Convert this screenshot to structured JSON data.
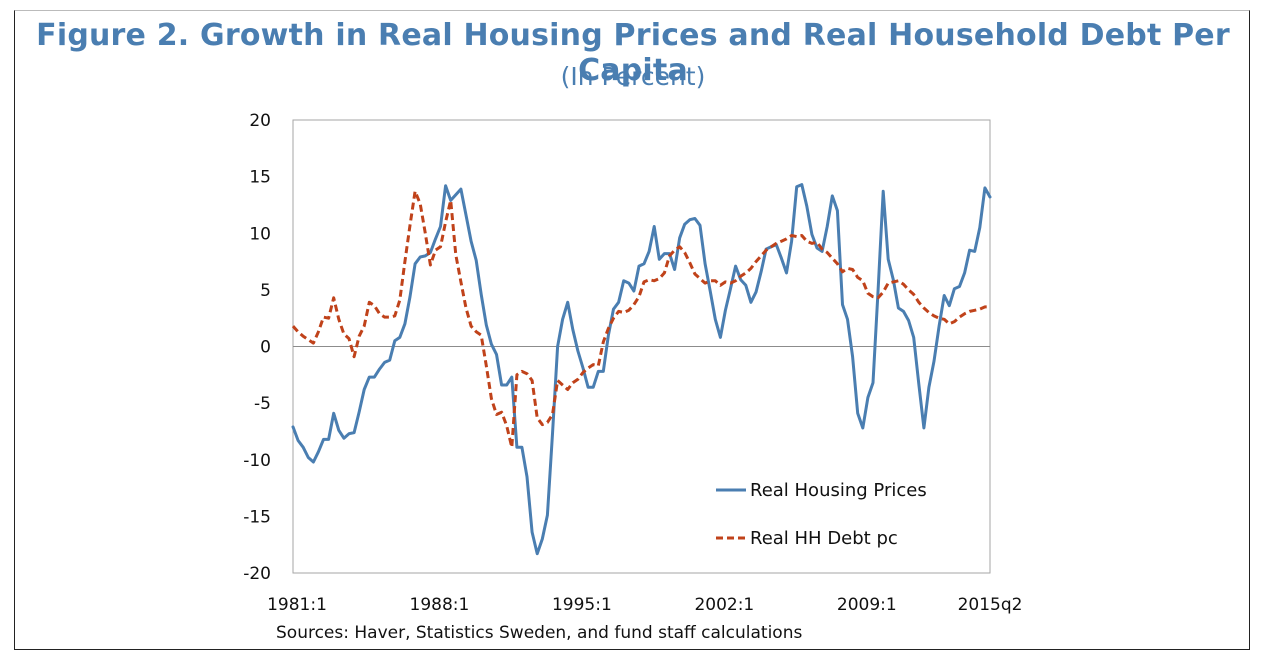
{
  "chart_data": {
    "type": "line",
    "title": "Figure 2. Growth in Real Housing Prices and Real Household Debt Per Capita",
    "subtitle": "(In Percent)",
    "ylim": [
      -20,
      20
    ],
    "yticks": [
      20,
      15,
      10,
      5,
      0,
      -5,
      -10,
      -15,
      -20
    ],
    "xlim": [
      1981.0,
      2015.25
    ],
    "xtick_labels": [
      {
        "x": 1981.0,
        "label": "1981:1"
      },
      {
        "x": 1988.0,
        "label": "1988:1"
      },
      {
        "x": 1995.0,
        "label": "1995:1"
      },
      {
        "x": 2002.0,
        "label": "2002:1"
      },
      {
        "x": 2009.0,
        "label": "2009:1"
      },
      {
        "x": 2015.25,
        "label": "2015q2"
      }
    ],
    "grid": false,
    "zero_line": true,
    "legend_position": "bottom-right",
    "series": [
      {
        "name": "Real Housing Prices",
        "color": "#4a7eb1",
        "style": "solid",
        "points": [
          [
            1981.0,
            -7.1
          ],
          [
            1981.25,
            -8.3
          ],
          [
            1981.5,
            -8.9
          ],
          [
            1981.75,
            -9.8
          ],
          [
            1982.0,
            -10.2
          ],
          [
            1982.25,
            -9.3
          ],
          [
            1982.5,
            -8.2
          ],
          [
            1982.75,
            -8.2
          ],
          [
            1983.0,
            -5.9
          ],
          [
            1983.25,
            -7.4
          ],
          [
            1983.5,
            -8.1
          ],
          [
            1983.75,
            -7.7
          ],
          [
            1984.0,
            -7.6
          ],
          [
            1984.25,
            -5.8
          ],
          [
            1984.5,
            -3.8
          ],
          [
            1984.75,
            -2.7
          ],
          [
            1985.0,
            -2.7
          ],
          [
            1985.25,
            -2.0
          ],
          [
            1985.5,
            -1.4
          ],
          [
            1985.75,
            -1.2
          ],
          [
            1986.0,
            0.5
          ],
          [
            1986.25,
            0.8
          ],
          [
            1986.5,
            2.0
          ],
          [
            1986.75,
            4.4
          ],
          [
            1987.0,
            7.3
          ],
          [
            1987.25,
            7.9
          ],
          [
            1987.5,
            8.0
          ],
          [
            1987.75,
            8.3
          ],
          [
            1988.0,
            9.5
          ],
          [
            1988.25,
            10.6
          ],
          [
            1988.5,
            14.2
          ],
          [
            1988.75,
            12.9
          ],
          [
            1989.0,
            13.4
          ],
          [
            1989.25,
            13.9
          ],
          [
            1989.5,
            11.6
          ],
          [
            1989.75,
            9.3
          ],
          [
            1990.0,
            7.6
          ],
          [
            1990.25,
            4.6
          ],
          [
            1990.5,
            1.9
          ],
          [
            1990.75,
            0.2
          ],
          [
            1991.0,
            -0.7
          ],
          [
            1991.25,
            -3.4
          ],
          [
            1991.5,
            -3.4
          ],
          [
            1991.75,
            -2.7
          ],
          [
            1992.0,
            -8.9
          ],
          [
            1992.25,
            -8.9
          ],
          [
            1992.5,
            -11.5
          ],
          [
            1992.75,
            -16.4
          ],
          [
            1993.0,
            -18.3
          ],
          [
            1993.25,
            -17.0
          ],
          [
            1993.5,
            -14.9
          ],
          [
            1993.75,
            -7.7
          ],
          [
            1994.0,
            0.0
          ],
          [
            1994.25,
            2.4
          ],
          [
            1994.5,
            3.9
          ],
          [
            1994.75,
            1.5
          ],
          [
            1995.0,
            -0.4
          ],
          [
            1995.25,
            -1.9
          ],
          [
            1995.5,
            -3.6
          ],
          [
            1995.75,
            -3.6
          ],
          [
            1996.0,
            -2.2
          ],
          [
            1996.25,
            -2.2
          ],
          [
            1996.5,
            1.0
          ],
          [
            1996.75,
            3.3
          ],
          [
            1997.0,
            3.9
          ],
          [
            1997.25,
            5.8
          ],
          [
            1997.5,
            5.6
          ],
          [
            1997.75,
            4.9
          ],
          [
            1998.0,
            7.1
          ],
          [
            1998.25,
            7.3
          ],
          [
            1998.5,
            8.4
          ],
          [
            1998.75,
            10.6
          ],
          [
            1999.0,
            7.7
          ],
          [
            1999.25,
            8.2
          ],
          [
            1999.5,
            8.2
          ],
          [
            1999.75,
            6.8
          ],
          [
            2000.0,
            9.6
          ],
          [
            2000.25,
            10.8
          ],
          [
            2000.5,
            11.2
          ],
          [
            2000.75,
            11.3
          ],
          [
            2001.0,
            10.7
          ],
          [
            2001.25,
            7.3
          ],
          [
            2001.5,
            4.9
          ],
          [
            2001.75,
            2.4
          ],
          [
            2002.0,
            0.8
          ],
          [
            2002.25,
            3.2
          ],
          [
            2002.5,
            5.1
          ],
          [
            2002.75,
            7.1
          ],
          [
            2003.0,
            5.9
          ],
          [
            2003.25,
            5.4
          ],
          [
            2003.5,
            3.9
          ],
          [
            2003.75,
            4.8
          ],
          [
            2004.0,
            6.6
          ],
          [
            2004.25,
            8.6
          ],
          [
            2004.5,
            8.8
          ],
          [
            2004.75,
            9.0
          ],
          [
            2005.0,
            7.8
          ],
          [
            2005.25,
            6.5
          ],
          [
            2005.5,
            9.3
          ],
          [
            2005.75,
            14.1
          ],
          [
            2006.0,
            14.3
          ],
          [
            2006.25,
            12.4
          ],
          [
            2006.5,
            9.9
          ],
          [
            2006.75,
            8.7
          ],
          [
            2007.0,
            8.4
          ],
          [
            2007.25,
            10.6
          ],
          [
            2007.5,
            13.3
          ],
          [
            2007.75,
            12.0
          ],
          [
            2008.0,
            3.7
          ],
          [
            2008.25,
            2.4
          ],
          [
            2008.5,
            -0.9
          ],
          [
            2008.75,
            -5.9
          ],
          [
            2009.0,
            -7.2
          ],
          [
            2009.25,
            -4.5
          ],
          [
            2009.5,
            -3.2
          ],
          [
            2009.75,
            5.0
          ],
          [
            2010.0,
            13.7
          ],
          [
            2010.25,
            7.7
          ],
          [
            2010.5,
            5.9
          ],
          [
            2010.75,
            3.4
          ],
          [
            2011.0,
            3.1
          ],
          [
            2011.25,
            2.3
          ],
          [
            2011.5,
            0.8
          ],
          [
            2011.75,
            -3.3
          ],
          [
            2012.0,
            -7.2
          ],
          [
            2012.25,
            -3.6
          ],
          [
            2012.5,
            -1.3
          ],
          [
            2012.75,
            1.8
          ],
          [
            2013.0,
            4.5
          ],
          [
            2013.25,
            3.6
          ],
          [
            2013.5,
            5.1
          ],
          [
            2013.75,
            5.3
          ],
          [
            2014.0,
            6.5
          ],
          [
            2014.25,
            8.5
          ],
          [
            2014.5,
            8.4
          ],
          [
            2014.75,
            10.5
          ],
          [
            2015.0,
            14.0
          ],
          [
            2015.25,
            13.2
          ]
        ]
      },
      {
        "name": "Real HH Debt pc",
        "color": "#c0421a",
        "style": "dashed",
        "points": [
          [
            1981.0,
            1.8
          ],
          [
            1981.25,
            1.3
          ],
          [
            1981.5,
            0.9
          ],
          [
            1981.75,
            0.6
          ],
          [
            1982.0,
            0.3
          ],
          [
            1982.25,
            1.3
          ],
          [
            1982.5,
            2.6
          ],
          [
            1982.75,
            2.5
          ],
          [
            1983.0,
            4.3
          ],
          [
            1983.25,
            2.4
          ],
          [
            1983.5,
            1.1
          ],
          [
            1983.75,
            0.7
          ],
          [
            1984.0,
            -0.9
          ],
          [
            1984.25,
            0.9
          ],
          [
            1984.5,
            1.8
          ],
          [
            1984.75,
            3.9
          ],
          [
            1985.0,
            3.6
          ],
          [
            1985.25,
            2.9
          ],
          [
            1985.5,
            2.6
          ],
          [
            1985.75,
            2.6
          ],
          [
            1986.0,
            2.7
          ],
          [
            1986.25,
            4.1
          ],
          [
            1986.5,
            7.5
          ],
          [
            1986.75,
            10.7
          ],
          [
            1987.0,
            13.7
          ],
          [
            1987.25,
            12.6
          ],
          [
            1987.5,
            10.0
          ],
          [
            1987.75,
            7.2
          ],
          [
            1988.0,
            8.5
          ],
          [
            1988.25,
            8.8
          ],
          [
            1988.5,
            11.0
          ],
          [
            1988.75,
            12.9
          ],
          [
            1989.0,
            8.1
          ],
          [
            1989.25,
            5.7
          ],
          [
            1989.5,
            3.4
          ],
          [
            1989.75,
            1.8
          ],
          [
            1990.0,
            1.3
          ],
          [
            1990.25,
            1.0
          ],
          [
            1990.5,
            -1.7
          ],
          [
            1990.75,
            -4.6
          ],
          [
            1991.0,
            -6.0
          ],
          [
            1991.25,
            -5.8
          ],
          [
            1991.5,
            -7.0
          ],
          [
            1991.75,
            -8.9
          ],
          [
            1992.0,
            -2.5
          ],
          [
            1992.25,
            -2.2
          ],
          [
            1992.5,
            -2.4
          ],
          [
            1992.75,
            -3.0
          ],
          [
            1993.0,
            -6.3
          ],
          [
            1993.25,
            -6.9
          ],
          [
            1993.5,
            -6.7
          ],
          [
            1993.75,
            -6.0
          ],
          [
            1994.0,
            -3.0
          ],
          [
            1994.25,
            -3.4
          ],
          [
            1994.5,
            -3.8
          ],
          [
            1994.75,
            -3.2
          ],
          [
            1995.0,
            -2.9
          ],
          [
            1995.25,
            -2.3
          ],
          [
            1995.5,
            -1.9
          ],
          [
            1995.75,
            -1.6
          ],
          [
            1996.0,
            -1.7
          ],
          [
            1996.25,
            0.4
          ],
          [
            1996.5,
            1.6
          ],
          [
            1996.75,
            2.5
          ],
          [
            1997.0,
            3.1
          ],
          [
            1997.25,
            3.0
          ],
          [
            1997.5,
            3.2
          ],
          [
            1997.75,
            3.7
          ],
          [
            1998.0,
            4.4
          ],
          [
            1998.25,
            5.7
          ],
          [
            1998.5,
            5.9
          ],
          [
            1998.75,
            5.8
          ],
          [
            1999.0,
            6.0
          ],
          [
            1999.25,
            6.5
          ],
          [
            1999.5,
            8.0
          ],
          [
            1999.75,
            8.5
          ],
          [
            2000.0,
            8.8
          ],
          [
            2000.25,
            8.3
          ],
          [
            2000.5,
            7.4
          ],
          [
            2000.75,
            6.4
          ],
          [
            2001.0,
            6.0
          ],
          [
            2001.25,
            5.6
          ],
          [
            2001.5,
            5.8
          ],
          [
            2001.75,
            5.8
          ],
          [
            2002.0,
            5.4
          ],
          [
            2002.25,
            5.7
          ],
          [
            2002.5,
            5.6
          ],
          [
            2002.75,
            5.8
          ],
          [
            2003.0,
            6.2
          ],
          [
            2003.25,
            6.5
          ],
          [
            2003.5,
            6.9
          ],
          [
            2003.75,
            7.5
          ],
          [
            2004.0,
            8.0
          ],
          [
            2004.25,
            8.5
          ],
          [
            2004.5,
            8.8
          ],
          [
            2004.75,
            9.1
          ],
          [
            2005.0,
            9.3
          ],
          [
            2005.25,
            9.5
          ],
          [
            2005.5,
            9.8
          ],
          [
            2005.75,
            9.7
          ],
          [
            2006.0,
            9.8
          ],
          [
            2006.25,
            9.3
          ],
          [
            2006.5,
            9.1
          ],
          [
            2006.75,
            9.2
          ],
          [
            2007.0,
            8.6
          ],
          [
            2007.25,
            8.3
          ],
          [
            2007.5,
            7.8
          ],
          [
            2007.75,
            7.3
          ],
          [
            2008.0,
            6.6
          ],
          [
            2008.25,
            6.9
          ],
          [
            2008.5,
            6.8
          ],
          [
            2008.75,
            6.1
          ],
          [
            2009.0,
            5.8
          ],
          [
            2009.25,
            4.7
          ],
          [
            2009.5,
            4.4
          ],
          [
            2009.75,
            4.3
          ],
          [
            2010.0,
            4.8
          ],
          [
            2010.25,
            5.6
          ],
          [
            2010.5,
            5.7
          ],
          [
            2010.75,
            5.8
          ],
          [
            2011.0,
            5.5
          ],
          [
            2011.25,
            5.0
          ],
          [
            2011.5,
            4.6
          ],
          [
            2011.75,
            3.9
          ],
          [
            2012.0,
            3.4
          ],
          [
            2012.25,
            3.0
          ],
          [
            2012.5,
            2.7
          ],
          [
            2012.75,
            2.5
          ],
          [
            2013.0,
            2.4
          ],
          [
            2013.25,
            2.0
          ],
          [
            2013.5,
            2.2
          ],
          [
            2013.75,
            2.6
          ],
          [
            2014.0,
            2.9
          ],
          [
            2014.25,
            3.1
          ],
          [
            2014.5,
            3.2
          ],
          [
            2014.75,
            3.3
          ],
          [
            2015.0,
            3.5
          ],
          [
            2015.25,
            3.5
          ]
        ]
      }
    ]
  },
  "source_note": "Sources: Haver, Statistics Sweden, and fund staff calculations"
}
